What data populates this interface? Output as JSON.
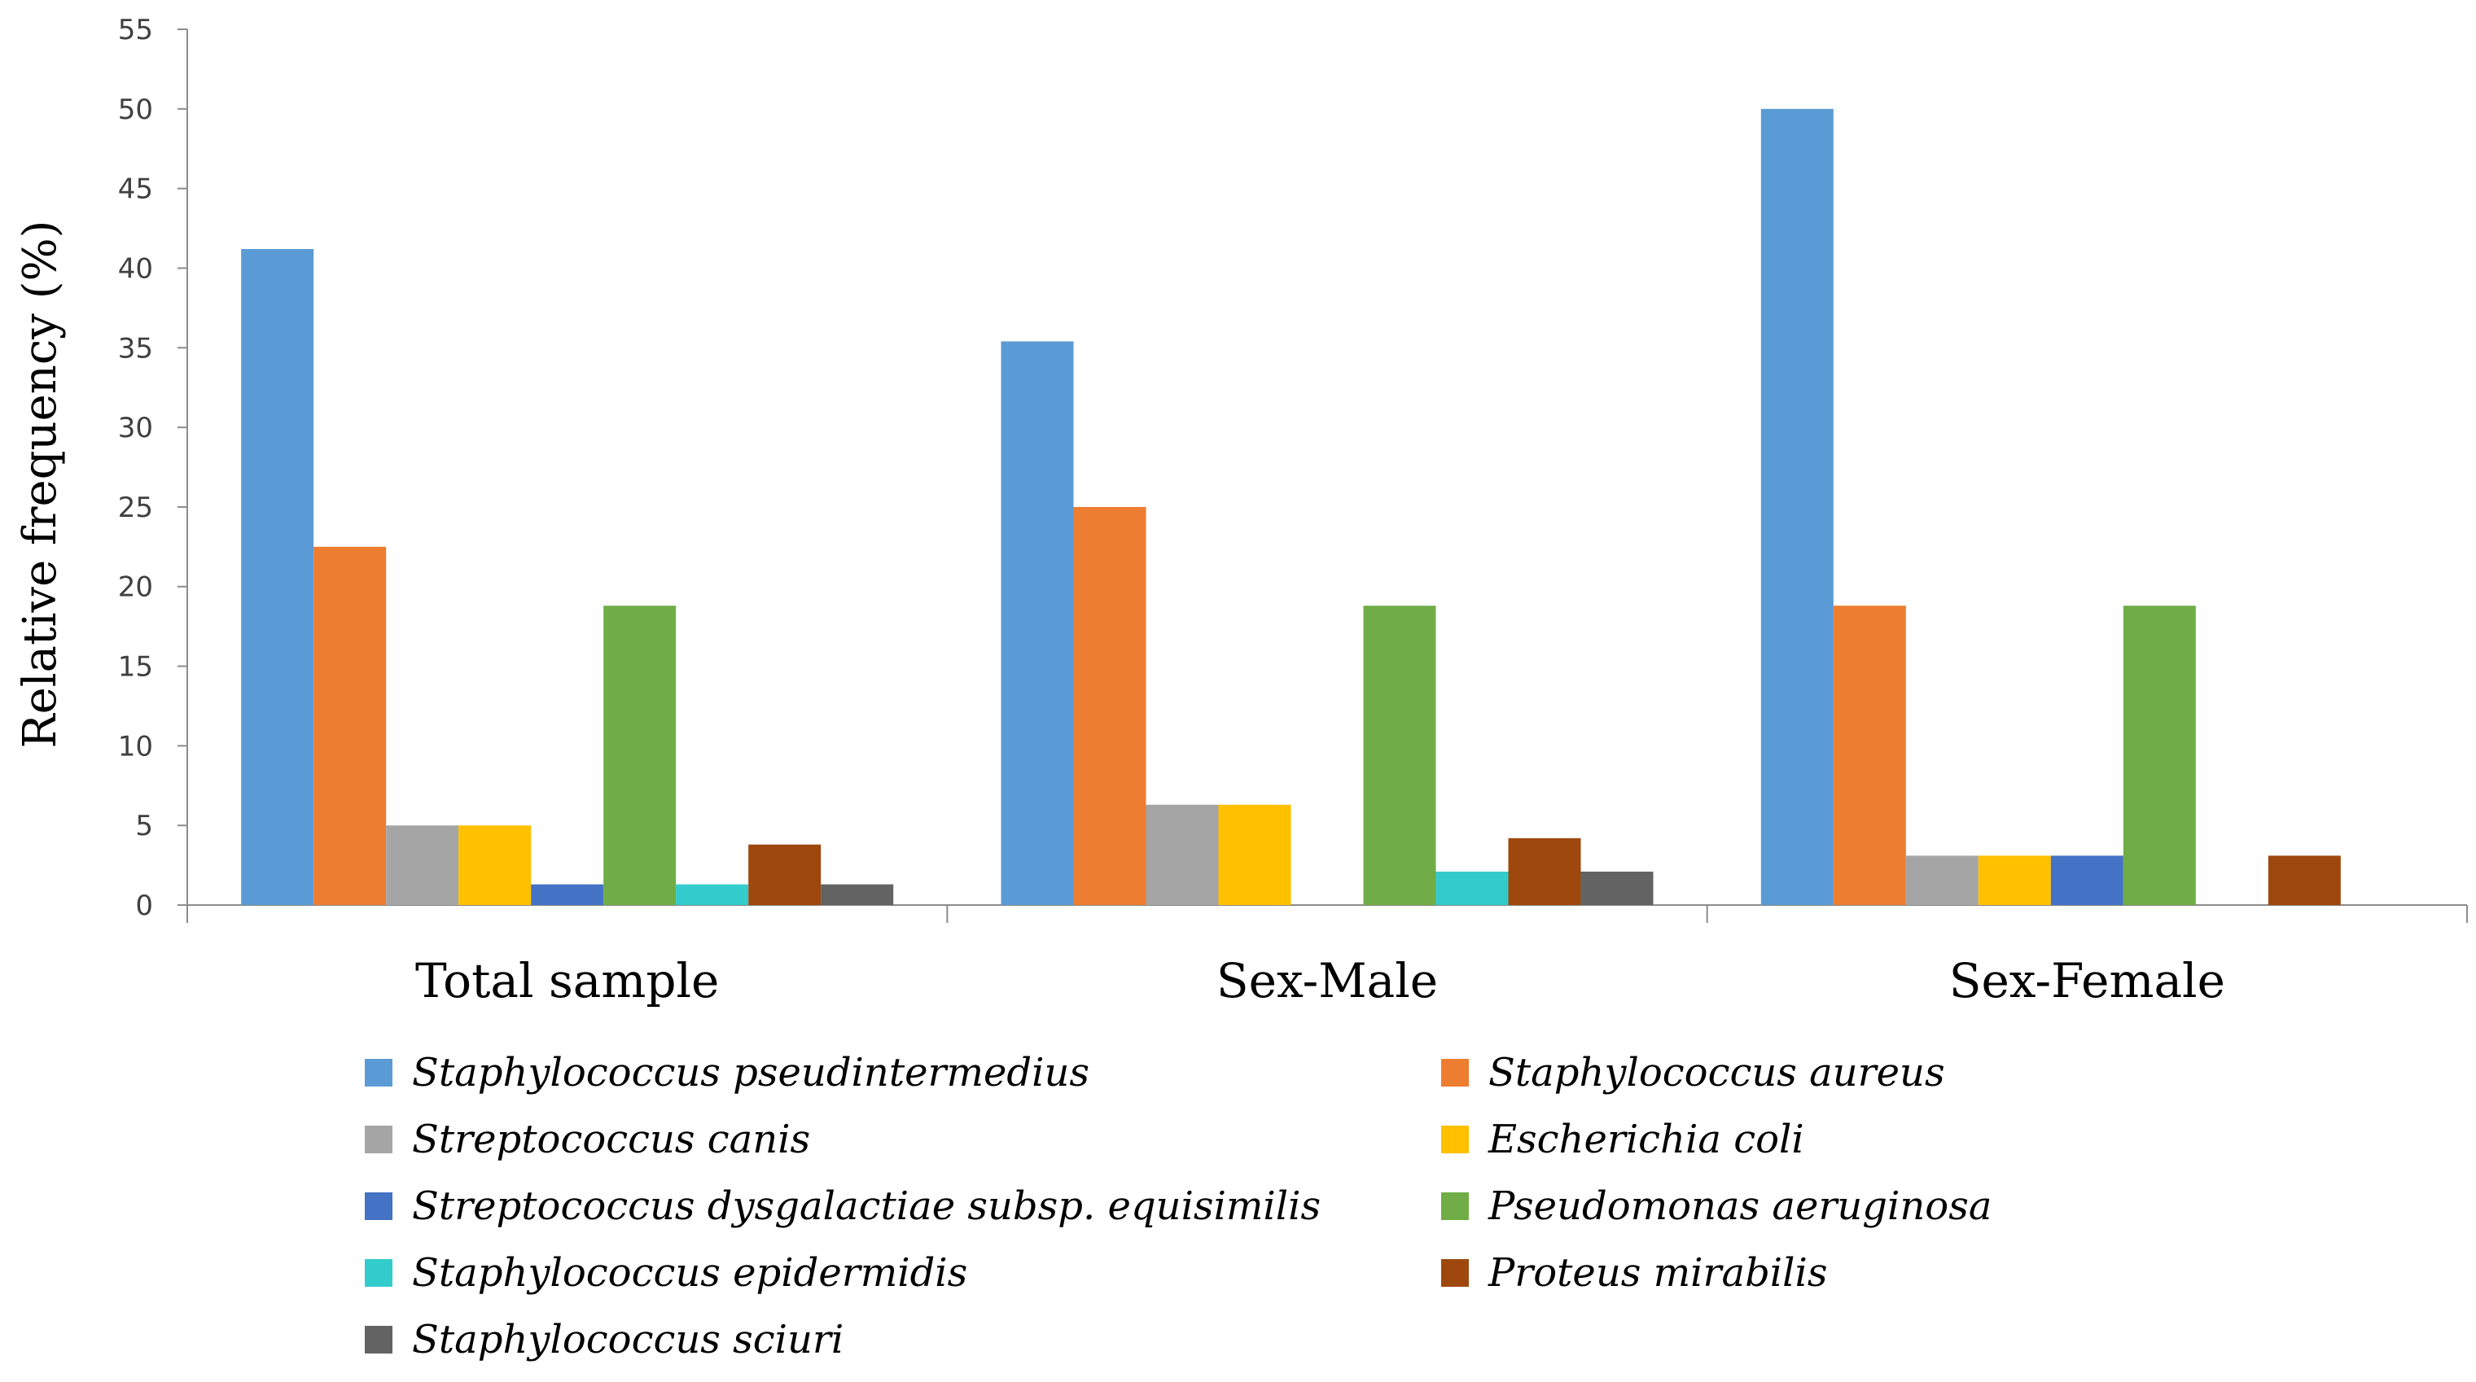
{
  "chart_data": {
    "type": "bar",
    "title": "",
    "xlabel": "",
    "ylabel": "Relative frequency (%)",
    "ylim": [
      0,
      55
    ],
    "yticks": [
      "0",
      "5",
      "10",
      "15",
      "20",
      "25",
      "30",
      "35",
      "40",
      "45",
      "50",
      "55"
    ],
    "grid": false,
    "legend_position": "bottom",
    "categories": [
      "Total sample",
      "Sex-Male",
      "Sex-Female"
    ],
    "series": [
      {
        "name": "Staphylococcus pseudintermedius",
        "color": "#5B9BD5",
        "values": [
          41.2,
          35.4,
          50.0
        ]
      },
      {
        "name": "Staphylococcus aureus",
        "color": "#ED7D31",
        "values": [
          22.5,
          25.0,
          18.8
        ]
      },
      {
        "name": "Streptococcus canis",
        "color": "#A5A5A5",
        "values": [
          5.0,
          6.3,
          3.1
        ]
      },
      {
        "name": "Escherichia coli",
        "color": "#FFC000",
        "values": [
          5.0,
          6.3,
          3.1
        ]
      },
      {
        "name": "Streptococcus dysgalactiae subsp. equisimilis",
        "color": "#4472C4",
        "values": [
          1.3,
          0,
          3.1
        ]
      },
      {
        "name": "Pseudomonas aeruginosa",
        "color": "#70AD47",
        "values": [
          18.8,
          18.8,
          18.8
        ]
      },
      {
        "name": "Staphylococcus epidermidis",
        "color": "#33CCCC",
        "values": [
          1.3,
          2.1,
          0
        ]
      },
      {
        "name": "Proteus mirabilis",
        "color": "#9E480E",
        "values": [
          3.8,
          4.2,
          3.1
        ]
      },
      {
        "name": "Staphylococcus sciuri",
        "color": "#636363",
        "values": [
          1.3,
          2.1,
          0
        ]
      }
    ]
  }
}
